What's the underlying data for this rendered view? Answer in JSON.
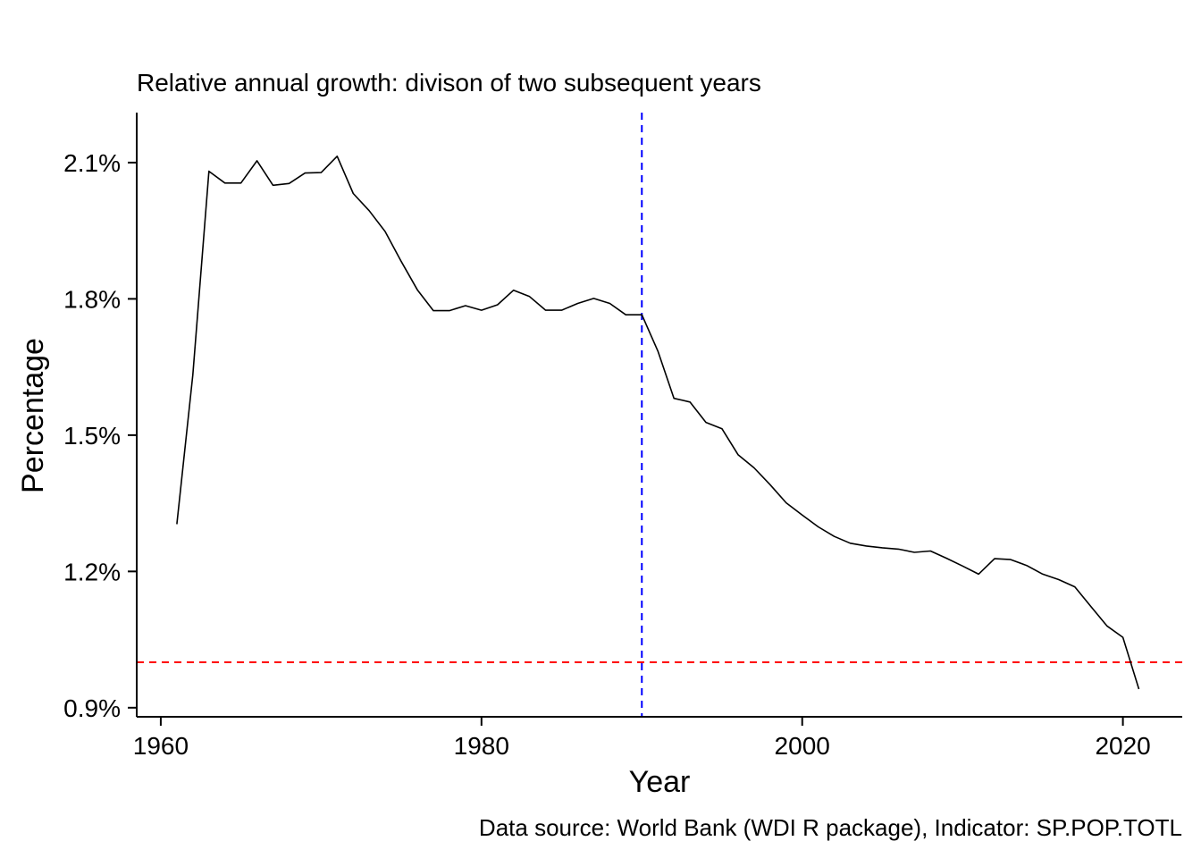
{
  "chart_data": {
    "type": "line",
    "title": "Relative annual growth: divison of two subsequent years",
    "xlabel": "Year",
    "ylabel": "Percentage",
    "caption": "Data source: World Bank (WDI R package), Indicator: SP.POP.TOTL",
    "xlim": [
      1958.5,
      2023.7
    ],
    "ylim": [
      0.0088,
      0.0221
    ],
    "x_ticks": [
      1960,
      1980,
      2000,
      2020
    ],
    "x_tick_labels": [
      "1960",
      "1980",
      "2000",
      "2020"
    ],
    "y_ticks": [
      0.009,
      0.012,
      0.015,
      0.018,
      0.021
    ],
    "y_tick_labels": [
      "0.9%",
      "1.2%",
      "1.5%",
      "1.8%",
      "2.1%"
    ],
    "grid": false,
    "series": [
      {
        "color": "#000000",
        "x": [
          1961,
          1962,
          1963,
          1964,
          1965,
          1966,
          1967,
          1968,
          1969,
          1970,
          1971,
          1972,
          1973,
          1974,
          1975,
          1976,
          1977,
          1978,
          1979,
          1980,
          1981,
          1982,
          1983,
          1984,
          1985,
          1986,
          1987,
          1988,
          1989,
          1990,
          1991,
          1992,
          1993,
          1994,
          1995,
          1996,
          1997,
          1998,
          1999,
          2000,
          2001,
          2002,
          2003,
          2004,
          2005,
          2006,
          2007,
          2008,
          2009,
          2010,
          2011,
          2012,
          2013,
          2014,
          2015,
          2016,
          2017,
          2018,
          2019,
          2020,
          2021
        ],
        "y": [
          0.01304,
          0.01633,
          0.02081,
          0.02055,
          0.02055,
          0.02104,
          0.0205,
          0.02054,
          0.02077,
          0.02078,
          0.02114,
          0.02032,
          0.01994,
          0.01948,
          0.01882,
          0.0182,
          0.01774,
          0.01774,
          0.01785,
          0.01775,
          0.01787,
          0.01819,
          0.01805,
          0.01775,
          0.01775,
          0.0179,
          0.01801,
          0.0179,
          0.01765,
          0.01765,
          0.01685,
          0.01581,
          0.01573,
          0.01528,
          0.01514,
          0.01457,
          0.01428,
          0.01391,
          0.01351,
          0.01324,
          0.01298,
          0.01277,
          0.01262,
          0.01256,
          0.01252,
          0.01249,
          0.01242,
          0.01245,
          0.01229,
          0.01212,
          0.01194,
          0.01228,
          0.01226,
          0.01213,
          0.01194,
          0.01182,
          0.01166,
          0.01123,
          0.0108,
          0.01055,
          0.00941
        ]
      }
    ],
    "reference_lines": [
      {
        "orientation": "vertical",
        "value": 1990,
        "color": "#0000ff",
        "style": "dashed"
      },
      {
        "orientation": "horizontal",
        "value": 0.01,
        "color": "#ff0000",
        "style": "dashed"
      }
    ]
  }
}
